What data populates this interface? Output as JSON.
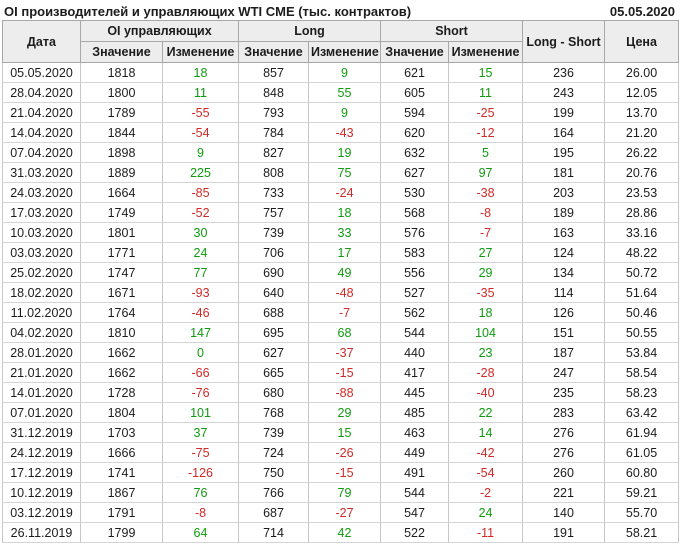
{
  "header": {
    "title": "OI производителей и управляющих WTI CME (тыс. контрактов)",
    "report_date": "05.05.2020"
  },
  "colors": {
    "positive": "#0f9b0f",
    "negative": "#cf2a27",
    "header_bg": "#ededed",
    "border": "#a8a8a8",
    "grid": "#c6c6c6",
    "row_border": "#d4d4d4"
  },
  "table": {
    "columns": {
      "date": "Дата",
      "oi_group": "OI управляющих",
      "long_group": "Long",
      "short_group": "Short",
      "value": "Значение",
      "change": "Изменение",
      "long_short": "Long - Short",
      "price": "Цена"
    },
    "rows": [
      {
        "date": "05.05.2020",
        "oi": "1818",
        "oi_chg": "18",
        "long": "857",
        "long_chg": "9",
        "short": "621",
        "short_chg": "15",
        "long_short": "236",
        "price": "26.00"
      },
      {
        "date": "28.04.2020",
        "oi": "1800",
        "oi_chg": "11",
        "long": "848",
        "long_chg": "55",
        "short": "605",
        "short_chg": "11",
        "long_short": "243",
        "price": "12.05"
      },
      {
        "date": "21.04.2020",
        "oi": "1789",
        "oi_chg": "-55",
        "long": "793",
        "long_chg": "9",
        "short": "594",
        "short_chg": "-25",
        "long_short": "199",
        "price": "13.70"
      },
      {
        "date": "14.04.2020",
        "oi": "1844",
        "oi_chg": "-54",
        "long": "784",
        "long_chg": "-43",
        "short": "620",
        "short_chg": "-12",
        "long_short": "164",
        "price": "21.20"
      },
      {
        "date": "07.04.2020",
        "oi": "1898",
        "oi_chg": "9",
        "long": "827",
        "long_chg": "19",
        "short": "632",
        "short_chg": "5",
        "long_short": "195",
        "price": "26.22"
      },
      {
        "date": "31.03.2020",
        "oi": "1889",
        "oi_chg": "225",
        "long": "808",
        "long_chg": "75",
        "short": "627",
        "short_chg": "97",
        "long_short": "181",
        "price": "20.76"
      },
      {
        "date": "24.03.2020",
        "oi": "1664",
        "oi_chg": "-85",
        "long": "733",
        "long_chg": "-24",
        "short": "530",
        "short_chg": "-38",
        "long_short": "203",
        "price": "23.53"
      },
      {
        "date": "17.03.2020",
        "oi": "1749",
        "oi_chg": "-52",
        "long": "757",
        "long_chg": "18",
        "short": "568",
        "short_chg": "-8",
        "long_short": "189",
        "price": "28.86"
      },
      {
        "date": "10.03.2020",
        "oi": "1801",
        "oi_chg": "30",
        "long": "739",
        "long_chg": "33",
        "short": "576",
        "short_chg": "-7",
        "long_short": "163",
        "price": "33.16"
      },
      {
        "date": "03.03.2020",
        "oi": "1771",
        "oi_chg": "24",
        "long": "706",
        "long_chg": "17",
        "short": "583",
        "short_chg": "27",
        "long_short": "124",
        "price": "48.22"
      },
      {
        "date": "25.02.2020",
        "oi": "1747",
        "oi_chg": "77",
        "long": "690",
        "long_chg": "49",
        "short": "556",
        "short_chg": "29",
        "long_short": "134",
        "price": "50.72"
      },
      {
        "date": "18.02.2020",
        "oi": "1671",
        "oi_chg": "-93",
        "long": "640",
        "long_chg": "-48",
        "short": "527",
        "short_chg": "-35",
        "long_short": "114",
        "price": "51.64"
      },
      {
        "date": "11.02.2020",
        "oi": "1764",
        "oi_chg": "-46",
        "long": "688",
        "long_chg": "-7",
        "short": "562",
        "short_chg": "18",
        "long_short": "126",
        "price": "50.46"
      },
      {
        "date": "04.02.2020",
        "oi": "1810",
        "oi_chg": "147",
        "long": "695",
        "long_chg": "68",
        "short": "544",
        "short_chg": "104",
        "long_short": "151",
        "price": "50.55"
      },
      {
        "date": "28.01.2020",
        "oi": "1662",
        "oi_chg": "0",
        "long": "627",
        "long_chg": "-37",
        "short": "440",
        "short_chg": "23",
        "long_short": "187",
        "price": "53.84"
      },
      {
        "date": "21.01.2020",
        "oi": "1662",
        "oi_chg": "-66",
        "long": "665",
        "long_chg": "-15",
        "short": "417",
        "short_chg": "-28",
        "long_short": "247",
        "price": "58.54"
      },
      {
        "date": "14.01.2020",
        "oi": "1728",
        "oi_chg": "-76",
        "long": "680",
        "long_chg": "-88",
        "short": "445",
        "short_chg": "-40",
        "long_short": "235",
        "price": "58.23"
      },
      {
        "date": "07.01.2020",
        "oi": "1804",
        "oi_chg": "101",
        "long": "768",
        "long_chg": "29",
        "short": "485",
        "short_chg": "22",
        "long_short": "283",
        "price": "63.42"
      },
      {
        "date": "31.12.2019",
        "oi": "1703",
        "oi_chg": "37",
        "long": "739",
        "long_chg": "15",
        "short": "463",
        "short_chg": "14",
        "long_short": "276",
        "price": "61.94"
      },
      {
        "date": "24.12.2019",
        "oi": "1666",
        "oi_chg": "-75",
        "long": "724",
        "long_chg": "-26",
        "short": "449",
        "short_chg": "-42",
        "long_short": "276",
        "price": "61.05"
      },
      {
        "date": "17.12.2019",
        "oi": "1741",
        "oi_chg": "-126",
        "long": "750",
        "long_chg": "-15",
        "short": "491",
        "short_chg": "-54",
        "long_short": "260",
        "price": "60.80"
      },
      {
        "date": "10.12.2019",
        "oi": "1867",
        "oi_chg": "76",
        "long": "766",
        "long_chg": "79",
        "short": "544",
        "short_chg": "-2",
        "long_short": "221",
        "price": "59.21"
      },
      {
        "date": "03.12.2019",
        "oi": "1791",
        "oi_chg": "-8",
        "long": "687",
        "long_chg": "-27",
        "short": "547",
        "short_chg": "24",
        "long_short": "140",
        "price": "55.70"
      },
      {
        "date": "26.11.2019",
        "oi": "1799",
        "oi_chg": "64",
        "long": "714",
        "long_chg": "42",
        "short": "522",
        "short_chg": "-11",
        "long_short": "191",
        "price": "58.21"
      }
    ]
  }
}
